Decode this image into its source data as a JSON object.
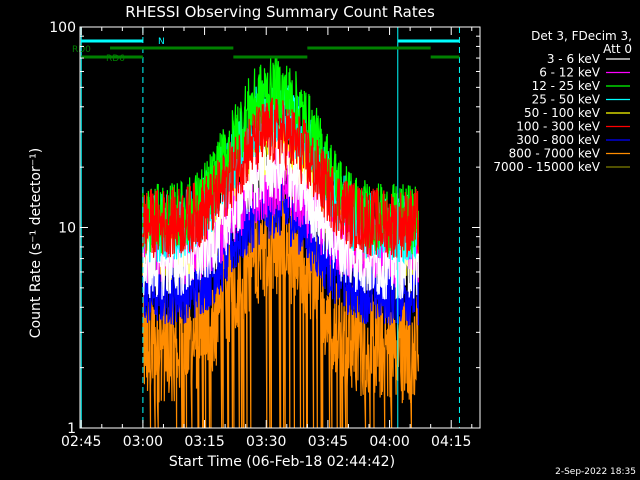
{
  "chart_data": {
    "type": "line",
    "title": "RHESSI Observing Summary Count Rates",
    "xlabel": "Start Time (06-Feb-18 02:44:42)",
    "ylabel": "Count Rate (s⁻¹ detector⁻¹)",
    "y_scale": "log",
    "ylim": [
      1,
      100
    ],
    "xlim": [
      "02:44:42",
      "04:22:00"
    ],
    "x_ticks": [
      "02:45",
      "03:00",
      "03:15",
      "03:30",
      "03:45",
      "04:00",
      "04:15"
    ],
    "y_ticks": [
      "1",
      "10",
      "100"
    ],
    "data_window": [
      "03:00",
      "04:07"
    ],
    "peak_time": "03:32",
    "legend": {
      "position": "top-right",
      "header": [
        "Det 3, FDecim 3,",
        "Att 0"
      ]
    },
    "series": [
      {
        "name": "3 - 6 keV",
        "color": "#ffffff",
        "baseline": 6.5,
        "peak": 20
      },
      {
        "name": "6 - 12 keV",
        "color": "#ff00ff",
        "baseline": 7.5,
        "peak": 17
      },
      {
        "name": "12 - 25 keV",
        "color": "#00ff00",
        "baseline": 11,
        "peak": 48
      },
      {
        "name": "25 - 50 keV",
        "color": "#00ffff",
        "baseline": 10,
        "peak": 38
      },
      {
        "name": "50 - 100 keV",
        "color": "#ffff00",
        "baseline": 8,
        "peak": 25
      },
      {
        "name": "100 - 300 keV",
        "color": "#ff0000",
        "baseline": 10.5,
        "peak": 30
      },
      {
        "name": "300 - 800 keV",
        "color": "#0000ff",
        "baseline": 4.8,
        "peak": 13
      },
      {
        "name": "800 - 7000 keV",
        "color": "#ff8c00",
        "baseline": 2.5,
        "peak": 8.5
      },
      {
        "name": "7000 - 15000 keV",
        "color": "#808000",
        "baseline": 1,
        "peak": 1
      }
    ],
    "state_bars": [
      {
        "label": "N",
        "color": "#00ffff",
        "segments": [
          [
            "02:45",
            "03:00"
          ],
          [
            "04:02",
            "04:17"
          ]
        ]
      },
      {
        "label": "RD0",
        "color": "#008000",
        "segments": [
          [
            "02:52",
            "03:22"
          ],
          [
            "03:40",
            "04:10"
          ]
        ]
      },
      {
        "label": "RD6",
        "color": "#008000",
        "segments": [
          [
            "02:45",
            "03:00"
          ],
          [
            "03:22",
            "03:40"
          ],
          [
            "04:10",
            "04:17"
          ]
        ]
      }
    ],
    "vlines": [
      {
        "time": "02:45",
        "color": "#00ffff",
        "style": "solid"
      },
      {
        "time": "03:00",
        "color": "#00ffff",
        "style": "dashed"
      },
      {
        "time": "04:02",
        "color": "#00ffff",
        "style": "solid"
      },
      {
        "time": "04:17",
        "color": "#00ffff",
        "style": "dashed"
      }
    ]
  },
  "footer": {
    "timestamp": "2-Sep-2022 18:35"
  }
}
